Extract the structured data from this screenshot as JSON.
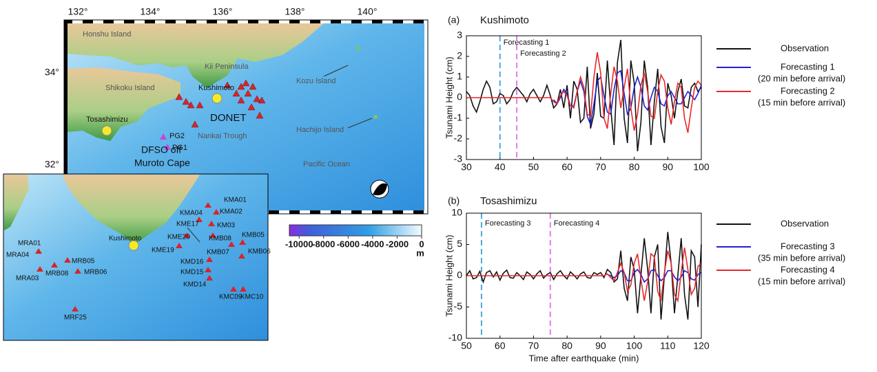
{
  "map": {
    "lon_ticks": [
      {
        "value": 132,
        "label": "132°"
      },
      {
        "value": 134,
        "label": "134°"
      },
      {
        "value": 136,
        "label": "136°"
      },
      {
        "value": 138,
        "label": "138°"
      },
      {
        "value": 140,
        "label": "140°"
      }
    ],
    "lat_ticks": [
      {
        "value": 34,
        "label": "34°"
      },
      {
        "value": 32,
        "label": "32°"
      }
    ],
    "labels": {
      "honshu": "Honshu Island",
      "kii": "Kii Peninsula",
      "shikoku": "Shikoku Island",
      "kushimoto": "Kushimoto",
      "donet": "DONET",
      "tosashimizu": "Tosashimizu",
      "kozu": "Kozu Island",
      "hachijo": "Hachijo Island",
      "nankai": "Nankai Trough",
      "pg2": "PG2",
      "pg1": "PG1",
      "dfso1": "DFSO off",
      "dfso2": "Muroto Cape",
      "pacific": "Pacific Ocean"
    },
    "colorbar": {
      "lim": [
        -10800,
        0
      ],
      "ticks": [
        -10000,
        -8000,
        -6000,
        -4000,
        -2000,
        0
      ],
      "unit": "m"
    },
    "inset": {
      "kushimoto": "Kushimoto",
      "stations": [
        "MRA01",
        "MRA04",
        "MRA03",
        "MRB08",
        "MRB05",
        "MRB06",
        "MRF25",
        "KMA01",
        "KMA02",
        "KMA04",
        "KM03",
        "KME17",
        "KME20",
        "KMB08",
        "KMB05",
        "KME19",
        "KMB07",
        "KMB06",
        "KMD16",
        "KMD15",
        "KMD14",
        "KMC09",
        "KMC10"
      ]
    }
  },
  "chart_data": [
    {
      "type": "line",
      "panel": "(a)",
      "title": "Kushimoto",
      "ylabel": "Tsunami Height (cm)",
      "x": [
        30,
        31,
        32,
        33,
        34,
        35,
        36,
        37,
        38,
        39,
        40,
        41,
        42,
        43,
        44,
        45,
        46,
        47,
        48,
        49,
        50,
        51,
        52,
        53,
        54,
        55,
        56,
        57,
        58,
        59,
        60,
        61,
        62,
        63,
        64,
        65,
        66,
        67,
        68,
        69,
        70,
        71,
        72,
        73,
        74,
        75,
        76,
        77,
        78,
        79,
        80,
        81,
        82,
        83,
        84,
        85,
        86,
        87,
        88,
        89,
        90,
        91,
        92,
        93,
        94,
        95,
        96,
        97,
        98,
        99,
        100
      ],
      "series": [
        {
          "name": "Observation",
          "color": "#111111",
          "values": [
            0.3,
            0.1,
            -0.4,
            -0.7,
            -0.2,
            0.4,
            0.8,
            0.5,
            -0.3,
            -0.2,
            0.2,
            0.1,
            -0.3,
            -0.1,
            0.3,
            0.5,
            0.3,
            0.1,
            -0.2,
            0.2,
            0.4,
            0.1,
            -0.2,
            0.1,
            0.6,
            0.1,
            -0.5,
            -0.3,
            0.4,
            -0.5,
            0.6,
            -1.0,
            0.8,
            0.4,
            -1.2,
            -1.0,
            1.5,
            -1.5,
            -0.8,
            1.2,
            -0.9,
            -1.0,
            1.8,
            -0.5,
            -2.3,
            1.7,
            2.8,
            -1.0,
            -2.2,
            1.8,
            0.7,
            -2.6,
            -1.2,
            1.8,
            0.5,
            -2.3,
            -0.2,
            1.4,
            -1.4,
            -2.2,
            0.7,
            0.1,
            -1.0,
            0.3,
            0.9,
            -0.4,
            -0.5,
            0.5,
            0.7,
            0.3,
            0.5
          ]
        },
        {
          "name": "Forecasting 1",
          "note": "(20 min before arrival)",
          "color": "#1f1fd6",
          "values": [
            null,
            null,
            null,
            null,
            null,
            null,
            null,
            null,
            null,
            null,
            null,
            null,
            null,
            null,
            null,
            null,
            null,
            null,
            null,
            null,
            null,
            null,
            null,
            null,
            null,
            null,
            -0.1,
            -0.3,
            0,
            0.4,
            0.2,
            -0.4,
            -0.4,
            0.3,
            0.8,
            0.3,
            -0.9,
            -1.3,
            -0.3,
            0.8,
            1.0,
            0.1,
            -0.7,
            -0.8,
            0.4,
            1.2,
            1.3,
            0.2,
            -0.8,
            -0.5,
            0.5,
            1.0,
            0.5,
            -0.4,
            -0.6,
            0,
            0.5,
            0.3,
            -0.3,
            -0.4,
            0.1,
            0.3,
            0,
            -0.3,
            -0.3,
            0,
            0.3,
            0.1,
            -0.1,
            0.2,
            0.6
          ]
        },
        {
          "name": "Forecasting 2",
          "note": "(15 min before arrival)",
          "color": "#e8262a",
          "values": [
            0,
            0,
            0,
            0,
            0,
            0,
            0,
            0,
            0,
            0,
            0,
            0,
            0,
            0,
            0,
            0,
            0,
            0,
            0,
            0,
            0,
            0,
            0,
            0,
            0,
            0,
            -0.2,
            -0.3,
            0.1,
            0.3,
            0.1,
            -0.4,
            -0.5,
            0.3,
            1.0,
            0.5,
            -0.8,
            -0.9,
            1.0,
            2.2,
            1.2,
            -1.0,
            -1.5,
            0.2,
            1.5,
            0.8,
            -0.5,
            0.5,
            1.4,
            -0.5,
            -1.6,
            -0.8,
            0.6,
            1.2,
            0.3,
            -0.9,
            -1.0,
            0.3,
            1.1,
            0.8,
            -0.5,
            -1.3,
            -0.2,
            0.7,
            0.5,
            -1.0,
            -1.7,
            -0.5,
            0.5,
            0.8,
            0.6
          ]
        }
      ],
      "vlines": [
        {
          "x": 40,
          "label": "Forecasting 1",
          "color": "#4aa8e0"
        },
        {
          "x": 45,
          "label": "Forecasting 2",
          "color": "#e07ee8"
        }
      ],
      "xlim": [
        30,
        100
      ],
      "xticks": [
        30,
        40,
        50,
        60,
        70,
        80,
        90,
        100
      ],
      "ylim": [
        -3,
        3
      ],
      "yticks": [
        -3,
        -2,
        -1,
        0,
        1,
        2,
        3
      ]
    },
    {
      "type": "line",
      "panel": "(b)",
      "title": "Tosashimizu",
      "ylabel": "Tsunami Height (cm)",
      "xlabel": "Time after earthquake (min)",
      "x": [
        50,
        51,
        52,
        53,
        54,
        55,
        56,
        57,
        58,
        59,
        60,
        61,
        62,
        63,
        64,
        65,
        66,
        67,
        68,
        69,
        70,
        71,
        72,
        73,
        74,
        75,
        76,
        77,
        78,
        79,
        80,
        81,
        82,
        83,
        84,
        85,
        86,
        87,
        88,
        89,
        90,
        91,
        92,
        93,
        94,
        95,
        96,
        97,
        98,
        99,
        100,
        101,
        102,
        103,
        104,
        105,
        106,
        107,
        108,
        109,
        110,
        111,
        112,
        113,
        114,
        115,
        116,
        117,
        118,
        119,
        120
      ],
      "series": [
        {
          "name": "Observation",
          "color": "#111111",
          "values": [
            0,
            0.8,
            -0.5,
            -0.3,
            0.7,
            -1,
            0.5,
            0.8,
            -0.2,
            0.6,
            -0.7,
            0.4,
            0.9,
            -0.3,
            -0.4,
            0.5,
            0,
            -0.6,
            0.6,
            0.2,
            -0.5,
            0.3,
            0.8,
            -0.4,
            0.2,
            0.5,
            -0.6,
            0.3,
            0.8,
            0,
            -0.5,
            0.6,
            0.1,
            -0.5,
            0.3,
            0.6,
            -0.3,
            -0.4,
            0.5,
            0.2,
            0.5,
            -0.3,
            1,
            0.5,
            -1,
            -0.5,
            4,
            -2,
            -4,
            3,
            1,
            -6,
            0,
            6,
            1,
            -6,
            3,
            5,
            -7,
            0,
            7,
            2,
            -6,
            0,
            6,
            -3,
            -7,
            4,
            3,
            -5,
            5
          ]
        },
        {
          "name": "Forecasting 3",
          "note": "(35 min before arrival)",
          "color": "#1f1fd6",
          "values": [
            null,
            null,
            null,
            null,
            null,
            null,
            null,
            null,
            null,
            null,
            null,
            null,
            null,
            null,
            null,
            null,
            null,
            null,
            null,
            null,
            null,
            null,
            null,
            null,
            null,
            null,
            null,
            null,
            null,
            null,
            null,
            null,
            null,
            null,
            null,
            null,
            null,
            null,
            null,
            null,
            null,
            null,
            0.2,
            0,
            -0.3,
            0,
            0.8,
            0.5,
            -0.8,
            -0.8,
            0.5,
            1,
            0.2,
            -1,
            -0.5,
            0.8,
            1,
            0,
            -0.8,
            -0.3,
            0.8,
            0.8,
            -0.2,
            -0.8,
            -0.2,
            0.8,
            0.5,
            -0.5,
            -0.7,
            0.2,
            0.5
          ]
        },
        {
          "name": "Forecasting 4",
          "note": "(15 min before arrival)",
          "color": "#e8262a",
          "values": [
            0,
            0,
            0,
            0,
            0,
            0,
            0,
            0,
            0,
            0,
            0,
            0,
            0,
            0,
            0,
            0,
            0,
            0,
            0,
            0,
            0,
            0,
            0,
            0,
            0,
            0,
            0,
            0,
            0,
            0,
            0,
            0,
            0,
            0,
            0,
            0,
            0,
            0,
            0,
            0,
            0,
            0,
            0.3,
            -0.3,
            -0.8,
            0.5,
            2,
            0.5,
            -2.5,
            -1.5,
            2,
            3.5,
            -0.5,
            -4,
            -1,
            3.5,
            3,
            -2.5,
            -4,
            0.5,
            4,
            2,
            -3,
            -4,
            0.5,
            4.5,
            1,
            -3,
            -2,
            1.5,
            2
          ]
        }
      ],
      "vlines": [
        {
          "x": 54.5,
          "label": "Forecasting 3",
          "color": "#4aa8e0"
        },
        {
          "x": 75,
          "label": "Forecasting 4",
          "color": "#e07ee8"
        }
      ],
      "xlim": [
        50,
        120
      ],
      "xticks": [
        50,
        60,
        70,
        80,
        90,
        100,
        110,
        120
      ],
      "ylim": [
        -10,
        10
      ],
      "yticks": [
        -10,
        -5,
        0,
        5,
        10
      ]
    }
  ]
}
